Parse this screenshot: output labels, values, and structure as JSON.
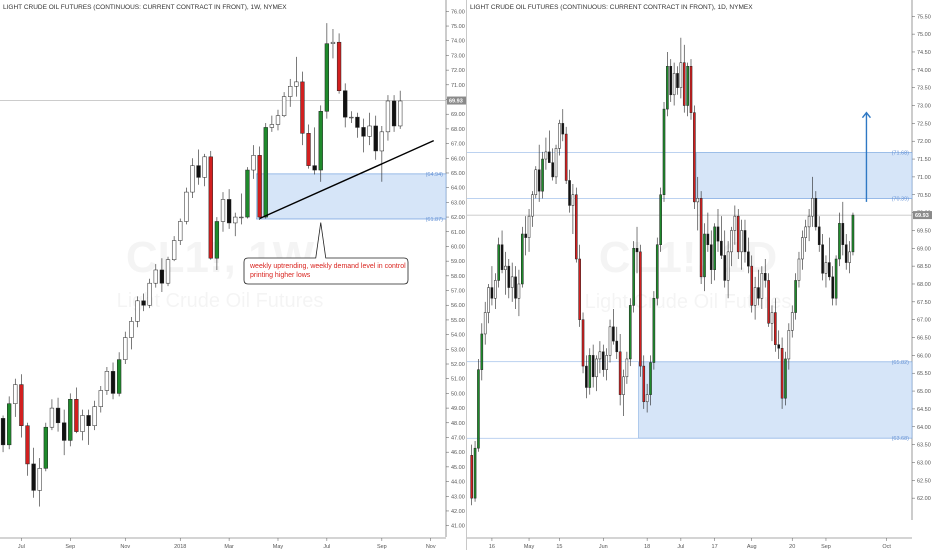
{
  "chart_data": [
    {
      "type": "candlestick",
      "title": "LIGHT CRUDE OIL FUTURES (CONTINUOUS: CURRENT CONTRACT IN FRONT), 1W, NYMEX",
      "watermark": {
        "symbol": "CL1!, 1W",
        "name": "Light Crude Oil Futures"
      },
      "ylim": [
        40.5,
        76.5
      ],
      "y_ticks": [
        "41.00",
        "42.00",
        "43.00",
        "44.00",
        "45.00",
        "46.00",
        "47.00",
        "48.00",
        "49.00",
        "50.00",
        "51.00",
        "52.00",
        "53.00",
        "54.00",
        "55.00",
        "56.00",
        "57.00",
        "58.00",
        "59.00",
        "60.00",
        "61.00",
        "62.00",
        "63.00",
        "64.00",
        "65.00",
        "66.00",
        "67.00",
        "68.00",
        "69.00",
        "70.00",
        "71.00",
        "72.00",
        "73.00",
        "74.00",
        "75.00",
        "76.00"
      ],
      "x_ticks": [
        {
          "label": "Jul",
          "i": 3
        },
        {
          "label": "Sep",
          "i": 11
        },
        {
          "label": "Nov",
          "i": 20
        },
        {
          "label": "2018",
          "i": 29
        },
        {
          "label": "Mar",
          "i": 37
        },
        {
          "label": "May",
          "i": 45
        },
        {
          "label": "Jul",
          "i": 53
        },
        {
          "label": "Sep",
          "i": 62
        },
        {
          "label": "Nov",
          "i": 70
        }
      ],
      "n_slots": 73,
      "last_price": {
        "value": 69.93,
        "label": "69.93"
      },
      "demand_zone": {
        "from": 61.87,
        "to": 64.94,
        "label_top": "(64.94)",
        "label_bottom": "(61.87)",
        "start_i": 42
      },
      "trendline": {
        "from": {
          "i": 42,
          "price": 61.9
        },
        "to": {
          "i": 70,
          "price": 67.2
        }
      },
      "annotation": {
        "text_lines": [
          "weekly uptrending, weekly demand level in control",
          "printing higher lows"
        ],
        "anchor": {
          "i": 52,
          "price": 61.9
        }
      },
      "candles": [
        [
          48.3,
          48.5,
          46.0,
          46.5
        ],
        [
          46.5,
          49.8,
          46.2,
          49.3
        ],
        [
          49.3,
          51.0,
          48.4,
          50.6
        ],
        [
          50.6,
          51.3,
          47.0,
          47.8
        ],
        [
          47.8,
          48.0,
          44.4,
          45.2
        ],
        [
          45.2,
          46.3,
          42.9,
          43.4
        ],
        [
          43.4,
          45.6,
          42.3,
          44.9
        ],
        [
          44.9,
          48.0,
          44.7,
          47.7
        ],
        [
          47.7,
          49.6,
          47.5,
          49.0
        ],
        [
          49.0,
          49.7,
          47.4,
          48.0
        ],
        [
          48.0,
          48.9,
          45.8,
          46.8
        ],
        [
          46.8,
          50.0,
          46.4,
          49.6
        ],
        [
          49.6,
          50.4,
          47.3,
          47.4
        ],
        [
          47.4,
          48.9,
          46.8,
          48.5
        ],
        [
          48.5,
          48.9,
          46.5,
          47.8
        ],
        [
          47.8,
          49.5,
          47.5,
          49.1
        ],
        [
          49.1,
          50.5,
          48.7,
          50.2
        ],
        [
          50.2,
          51.8,
          49.9,
          51.5
        ],
        [
          51.5,
          52.1,
          49.6,
          50.0
        ],
        [
          50.0,
          52.8,
          49.8,
          52.3
        ],
        [
          52.3,
          54.2,
          52.0,
          53.8
        ],
        [
          53.8,
          55.2,
          53.0,
          54.9
        ],
        [
          54.9,
          56.6,
          54.5,
          56.3
        ],
        [
          56.3,
          56.8,
          55.6,
          56.0
        ],
        [
          56.0,
          57.8,
          55.8,
          57.5
        ],
        [
          57.5,
          58.8,
          57.2,
          58.4
        ],
        [
          58.4,
          59.2,
          56.9,
          57.5
        ],
        [
          57.5,
          59.3,
          57.3,
          59.1
        ],
        [
          59.1,
          60.7,
          59.0,
          60.4
        ],
        [
          60.4,
          61.9,
          60.1,
          61.7
        ],
        [
          61.7,
          64.0,
          61.5,
          63.7
        ],
        [
          63.7,
          66.0,
          63.3,
          65.5
        ],
        [
          65.5,
          66.6,
          64.2,
          64.7
        ],
        [
          64.7,
          66.3,
          64.1,
          66.1
        ],
        [
          66.1,
          66.5,
          59.1,
          59.2
        ],
        [
          59.2,
          62.0,
          58.4,
          61.7
        ],
        [
          61.7,
          63.7,
          61.0,
          63.2
        ],
        [
          63.2,
          63.9,
          61.2,
          61.6
        ],
        [
          61.6,
          62.3,
          60.7,
          62.0
        ],
        [
          62.0,
          63.6,
          61.5,
          62.0
        ],
        [
          62.0,
          65.4,
          61.9,
          65.2
        ],
        [
          65.2,
          66.9,
          64.6,
          66.2
        ],
        [
          66.2,
          66.8,
          61.8,
          62.0
        ],
        [
          62.0,
          68.4,
          61.9,
          68.1
        ],
        [
          68.1,
          68.9,
          67.8,
          68.3
        ],
        [
          68.3,
          69.3,
          67.9,
          68.9
        ],
        [
          68.9,
          70.5,
          68.8,
          70.2
        ],
        [
          70.2,
          71.4,
          69.5,
          70.9
        ],
        [
          70.9,
          72.9,
          70.2,
          71.2
        ],
        [
          71.2,
          71.9,
          66.9,
          67.7
        ],
        [
          67.7,
          68.3,
          65.3,
          65.5
        ],
        [
          65.5,
          68.1,
          64.9,
          65.2
        ],
        [
          65.2,
          69.6,
          64.4,
          69.2
        ],
        [
          69.2,
          75.2,
          68.7,
          73.8
        ],
        [
          73.8,
          74.8,
          72.8,
          73.9
        ],
        [
          73.9,
          74.5,
          70.4,
          70.6
        ],
        [
          70.6,
          71.1,
          68.1,
          68.8
        ],
        [
          68.8,
          69.2,
          68.4,
          68.8
        ],
        [
          68.8,
          69.1,
          67.4,
          68.1
        ],
        [
          68.1,
          68.7,
          66.4,
          67.5
        ],
        [
          67.5,
          69.1,
          66.9,
          68.2
        ],
        [
          68.2,
          68.9,
          65.9,
          66.5
        ],
        [
          66.5,
          68.2,
          64.4,
          67.8
        ],
        [
          67.8,
          70.3,
          67.2,
          69.9
        ],
        [
          69.9,
          70.3,
          67.8,
          68.2
        ],
        [
          68.2,
          70.6,
          68.0,
          69.9
        ]
      ]
    },
    {
      "type": "candlestick",
      "title": "LIGHT CRUDE OIL FUTURES (CONTINUOUS: CURRENT CONTRACT IN FRONT), 1D, NYMEX",
      "watermark": {
        "symbol": "CL1!, 1D",
        "name": "Light Crude Oil Futures"
      },
      "ylim": [
        61.5,
        75.9
      ],
      "y_ticks": [
        "62.00",
        "62.50",
        "63.00",
        "63.50",
        "64.00",
        "64.50",
        "65.00",
        "65.50",
        "66.00",
        "66.50",
        "67.00",
        "67.50",
        "68.00",
        "68.50",
        "69.00",
        "69.50",
        "70.00",
        "70.50",
        "71.00",
        "71.50",
        "72.00",
        "72.50",
        "73.00",
        "73.50",
        "74.00",
        "74.50",
        "75.00",
        "75.50"
      ],
      "x_ticks": [
        {
          "label": "16",
          "i": 6
        },
        {
          "label": "May",
          "i": 17
        },
        {
          "label": "15",
          "i": 26
        },
        {
          "label": "Jun",
          "i": 39
        },
        {
          "label": "18",
          "i": 52
        },
        {
          "label": "Jul",
          "i": 62
        },
        {
          "label": "17",
          "i": 72
        },
        {
          "label": "Aug",
          "i": 83
        },
        {
          "label": "20",
          "i": 95
        },
        {
          "label": "Sep",
          "i": 105
        },
        {
          "label": "Oct",
          "i": 123
        }
      ],
      "n_slots": 131,
      "last_price": {
        "value": 69.93,
        "label": "69.93"
      },
      "supply_zone": {
        "from": 70.39,
        "to": 71.68,
        "label_top": "(71.68)",
        "label_bottom": "(70.39)",
        "start_i": 67
      },
      "demand_zone": {
        "from": 63.68,
        "to": 65.82,
        "label_top": "(65.82)",
        "label_bottom": "(63.68)",
        "start_i": 50
      },
      "arrow": {
        "from": {
          "i": 117,
          "price": 70.3
        },
        "to": {
          "i": 117,
          "price": 72.8
        }
      },
      "candles": [
        [
          63.2,
          63.5,
          61.8,
          62.0
        ],
        [
          62.0,
          63.6,
          61.9,
          63.4
        ],
        [
          63.4,
          65.9,
          63.3,
          65.6
        ],
        [
          65.6,
          66.9,
          65.3,
          66.6
        ],
        [
          66.6,
          67.5,
          66.3,
          67.2
        ],
        [
          67.2,
          68.0,
          66.9,
          67.9
        ],
        [
          67.9,
          68.5,
          67.4,
          67.6
        ],
        [
          67.6,
          68.3,
          67.3,
          68.1
        ],
        [
          68.1,
          69.3,
          67.9,
          69.1
        ],
        [
          69.1,
          69.5,
          68.3,
          68.4
        ],
        [
          68.4,
          68.9,
          67.7,
          68.5
        ],
        [
          68.5,
          68.7,
          67.6,
          67.9
        ],
        [
          67.9,
          68.6,
          67.5,
          68.2
        ],
        [
          68.2,
          68.5,
          67.3,
          67.6
        ],
        [
          67.6,
          68.4,
          67.1,
          68.0
        ],
        [
          68.0,
          69.6,
          67.9,
          69.4
        ],
        [
          69.4,
          69.9,
          68.8,
          69.3
        ],
        [
          69.3,
          70.1,
          68.9,
          69.9
        ],
        [
          69.9,
          70.6,
          69.6,
          70.5
        ],
        [
          70.5,
          71.3,
          70.4,
          71.2
        ],
        [
          71.2,
          71.9,
          70.3,
          70.6
        ],
        [
          70.6,
          71.7,
          70.4,
          71.5
        ],
        [
          71.5,
          72.1,
          71.2,
          71.7
        ],
        [
          71.7,
          72.3,
          71.4,
          71.4
        ],
        [
          71.4,
          71.8,
          70.9,
          71.0
        ],
        [
          71.0,
          71.9,
          70.8,
          71.8
        ],
        [
          71.8,
          72.6,
          71.6,
          72.5
        ],
        [
          72.5,
          72.9,
          72.0,
          72.2
        ],
        [
          72.2,
          72.4,
          70.8,
          70.9
        ],
        [
          70.9,
          71.2,
          70.0,
          70.2
        ],
        [
          70.2,
          70.8,
          69.4,
          70.5
        ],
        [
          70.5,
          70.7,
          68.6,
          68.7
        ],
        [
          68.7,
          69.1,
          66.8,
          67.0
        ],
        [
          67.0,
          67.2,
          65.5,
          65.7
        ],
        [
          65.7,
          66.0,
          64.8,
          65.1
        ],
        [
          65.1,
          66.2,
          64.9,
          66.0
        ],
        [
          66.0,
          66.3,
          65.1,
          65.4
        ],
        [
          65.4,
          66.0,
          65.0,
          65.9
        ],
        [
          65.9,
          66.4,
          65.5,
          66.1
        ],
        [
          66.1,
          66.3,
          65.4,
          65.6
        ],
        [
          65.6,
          66.2,
          65.3,
          66.0
        ],
        [
          66.0,
          67.0,
          65.8,
          66.8
        ],
        [
          66.8,
          67.3,
          66.3,
          66.4
        ],
        [
          66.4,
          66.8,
          65.9,
          66.1
        ],
        [
          66.1,
          66.6,
          64.6,
          64.9
        ],
        [
          64.9,
          65.6,
          64.3,
          65.4
        ],
        [
          65.4,
          66.1,
          65.2,
          65.9
        ],
        [
          65.9,
          67.6,
          65.7,
          67.4
        ],
        [
          67.4,
          69.2,
          67.2,
          69.0
        ],
        [
          69.0,
          69.6,
          68.3,
          68.9
        ],
        [
          68.9,
          69.1,
          65.4,
          65.7
        ],
        [
          65.7,
          66.0,
          64.5,
          64.7
        ],
        [
          64.7,
          65.2,
          64.4,
          64.9
        ],
        [
          64.9,
          66.0,
          64.6,
          65.8
        ],
        [
          65.8,
          67.8,
          65.6,
          67.6
        ],
        [
          67.6,
          69.3,
          67.4,
          69.1
        ],
        [
          69.1,
          70.7,
          68.9,
          70.5
        ],
        [
          70.5,
          73.1,
          70.3,
          72.9
        ],
        [
          72.9,
          74.5,
          72.7,
          74.1
        ],
        [
          74.1,
          74.3,
          73.1,
          73.3
        ],
        [
          73.3,
          74.2,
          73.0,
          73.9
        ],
        [
          73.9,
          74.1,
          73.3,
          73.5
        ],
        [
          73.5,
          74.9,
          73.2,
          74.2
        ],
        [
          74.2,
          74.7,
          72.8,
          73.0
        ],
        [
          73.0,
          74.2,
          72.7,
          74.1
        ],
        [
          74.1,
          74.3,
          72.6,
          72.8
        ],
        [
          72.8,
          73.0,
          70.1,
          70.3
        ],
        [
          70.3,
          71.0,
          69.5,
          70.4
        ],
        [
          70.4,
          70.6,
          68.0,
          68.2
        ],
        [
          68.2,
          69.7,
          67.8,
          69.4
        ],
        [
          69.4,
          70.0,
          68.9,
          69.1
        ],
        [
          69.1,
          69.5,
          68.0,
          68.4
        ],
        [
          68.4,
          69.7,
          68.1,
          69.6
        ],
        [
          69.6,
          70.1,
          68.9,
          69.2
        ],
        [
          69.2,
          69.9,
          68.7,
          68.8
        ],
        [
          68.8,
          69.5,
          67.9,
          68.1
        ],
        [
          68.1,
          69.2,
          67.6,
          68.9
        ],
        [
          68.9,
          69.6,
          68.5,
          69.5
        ],
        [
          69.5,
          70.2,
          69.1,
          69.9
        ],
        [
          69.9,
          70.1,
          68.7,
          68.9
        ],
        [
          68.9,
          69.8,
          68.4,
          69.5
        ],
        [
          69.5,
          69.8,
          68.6,
          68.9
        ],
        [
          68.9,
          69.3,
          68.3,
          68.5
        ],
        [
          68.5,
          68.8,
          67.2,
          67.4
        ],
        [
          67.4,
          68.2,
          67.0,
          67.9
        ],
        [
          67.9,
          68.4,
          67.4,
          67.6
        ],
        [
          67.6,
          68.5,
          67.3,
          68.3
        ],
        [
          68.3,
          68.7,
          67.9,
          68.1
        ],
        [
          68.1,
          68.3,
          66.8,
          66.9
        ],
        [
          66.9,
          67.4,
          66.4,
          67.2
        ],
        [
          67.2,
          67.6,
          66.1,
          66.3
        ],
        [
          66.3,
          66.7,
          65.9,
          66.2
        ],
        [
          66.2,
          66.5,
          64.5,
          64.8
        ],
        [
          64.8,
          66.1,
          64.6,
          65.9
        ],
        [
          65.9,
          66.9,
          65.6,
          66.7
        ],
        [
          66.7,
          67.4,
          66.5,
          67.2
        ],
        [
          67.2,
          68.3,
          67.0,
          68.1
        ],
        [
          68.1,
          68.9,
          67.9,
          68.7
        ],
        [
          68.7,
          69.5,
          68.4,
          69.3
        ],
        [
          69.3,
          69.8,
          68.9,
          69.6
        ],
        [
          69.6,
          70.1,
          69.2,
          69.9
        ],
        [
          69.9,
          71.0,
          69.6,
          70.4
        ],
        [
          70.4,
          70.6,
          69.5,
          69.6
        ],
        [
          69.6,
          69.9,
          68.9,
          69.1
        ],
        [
          69.1,
          69.4,
          68.1,
          68.3
        ],
        [
          68.3,
          68.8,
          67.9,
          68.6
        ],
        [
          68.6,
          69.3,
          68.1,
          68.2
        ],
        [
          68.2,
          68.5,
          67.4,
          67.6
        ],
        [
          67.6,
          68.8,
          67.4,
          68.7
        ],
        [
          68.7,
          70.0,
          68.5,
          69.7
        ],
        [
          69.7,
          70.3,
          68.8,
          69.1
        ],
        [
          69.1,
          69.4,
          68.4,
          68.6
        ],
        [
          68.6,
          69.2,
          68.3,
          68.9
        ],
        [
          68.9,
          70.0,
          68.8,
          69.93
        ]
      ]
    }
  ]
}
